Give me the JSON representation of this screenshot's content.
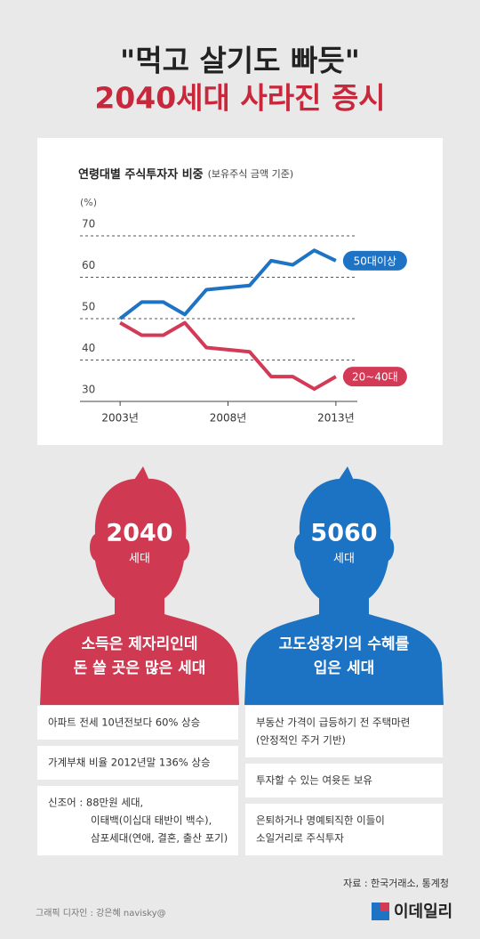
{
  "headline": [
    "\"먹고 살기도 빠듯\"",
    "2040세대 사라진 증시"
  ],
  "chart_data": {
    "type": "line",
    "title": "연령대별 주식투자자 비중",
    "subtitle": "(보유주식 금액 기준)",
    "y_unit": "(%)",
    "x": [
      2003,
      2004,
      2005,
      2006,
      2007,
      2008,
      2009,
      2010,
      2011,
      2012,
      2013
    ],
    "xlim": [
      2002.5,
      2013.5
    ],
    "xticks": [
      {
        "value": 2003,
        "label": "2003년"
      },
      {
        "value": 2008,
        "label": "2008년"
      },
      {
        "value": 2013,
        "label": "2013년"
      }
    ],
    "ylim": [
      30,
      70
    ],
    "yticks": [
      30,
      40,
      50,
      60,
      70
    ],
    "grid": true,
    "series": [
      {
        "name": "50대이상",
        "color": "#1f73c4",
        "values": [
          50,
          54,
          54,
          51,
          57,
          57.5,
          58,
          64,
          63,
          66.5,
          64
        ]
      },
      {
        "name": "20~40대",
        "color": "#d23a55",
        "values": [
          49,
          46,
          46,
          49,
          43,
          42.5,
          42,
          36,
          36,
          33,
          36
        ]
      }
    ]
  },
  "groups": [
    {
      "label": "2040",
      "sublabel": "세대",
      "color": "#cf3a52",
      "description": [
        "소득은 제자리인데",
        "돈 쓸 곳은 많은 세대"
      ],
      "items": [
        [
          "아파트 전세 10년전보다 60% 상승"
        ],
        [
          "가계부채 비율 2012년말 136% 상승"
        ],
        [
          "신조어 : 88만원 세대,",
          "이태백(이십대 태반이 백수),",
          "삼포세대(연애, 결혼, 출산 포기)"
        ]
      ]
    },
    {
      "label": "5060",
      "sublabel": "세대",
      "color": "#1c72c3",
      "description": [
        "고도성장기의 수혜를",
        "입은 세대"
      ],
      "items": [
        [
          "부동산 가격이 급등하기 전 주택마련",
          "(안정적인 주거 기반)"
        ],
        [
          "투자할 수 있는 여윳돈 보유"
        ],
        [
          "은퇴하거나 명예퇴직한 이들이",
          "소일거리로 주식투자"
        ]
      ]
    }
  ],
  "footer": {
    "source": "자료 : 한국거래소, 통계청",
    "credit": "그래픽 디자인 : 강은혜 navisky@",
    "logo": "이데일리"
  }
}
